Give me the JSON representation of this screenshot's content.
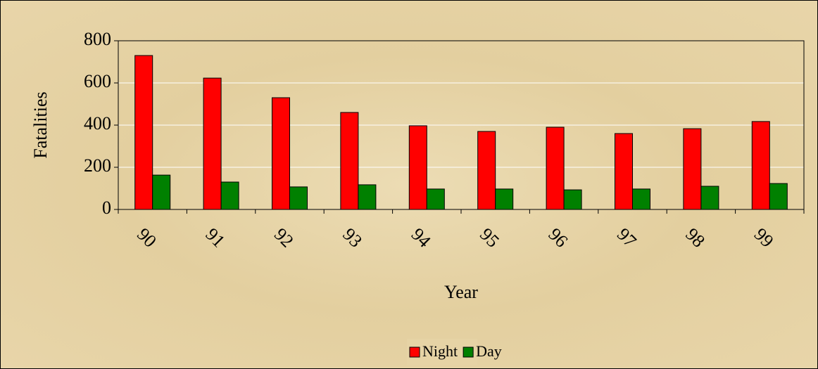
{
  "chart_data": {
    "type": "bar",
    "x_label": "Year",
    "y_label": "Fatalities",
    "categories": [
      "90",
      "91",
      "92",
      "93",
      "94",
      "95",
      "96",
      "97",
      "98",
      "99"
    ],
    "series": [
      {
        "name": "Night",
        "color": "#ff0000",
        "values": [
          730,
          623,
          530,
          460,
          397,
          370,
          390,
          360,
          383,
          417
        ]
      },
      {
        "name": "Day",
        "color": "#008000",
        "values": [
          163,
          130,
          107,
          117,
          97,
          97,
          93,
          97,
          110,
          123
        ]
      }
    ],
    "ylim": [
      0,
      800
    ],
    "yticks": [
      0,
      200,
      400,
      600,
      800
    ],
    "grid": true,
    "legend": "bottom"
  }
}
